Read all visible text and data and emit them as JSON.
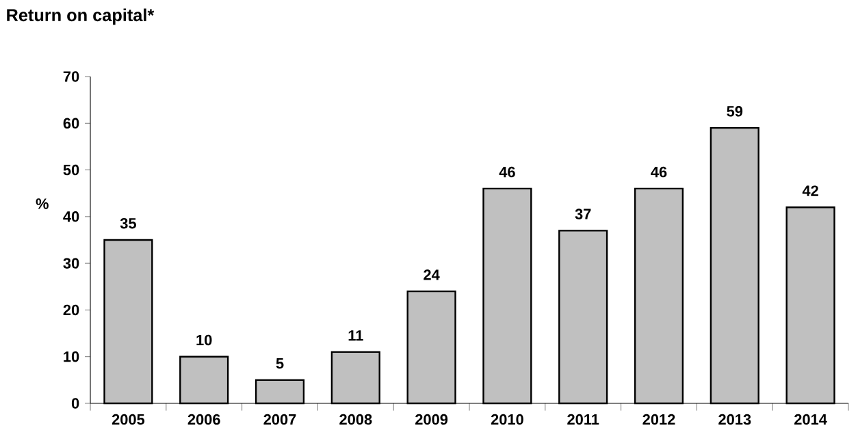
{
  "chart_data": {
    "type": "bar",
    "title": "Return on capital*",
    "ylabel": "%",
    "categories": [
      "2005",
      "2006",
      "2007",
      "2008",
      "2009",
      "2010",
      "2011",
      "2012",
      "2013",
      "2014"
    ],
    "values": [
      35,
      10,
      5,
      11,
      24,
      46,
      37,
      46,
      59,
      42
    ],
    "color": "#c0c0c0",
    "ylim": [
      0,
      70
    ],
    "yticks": [
      0,
      10,
      20,
      30,
      40,
      50,
      60,
      70
    ],
    "data_labels": true
  }
}
